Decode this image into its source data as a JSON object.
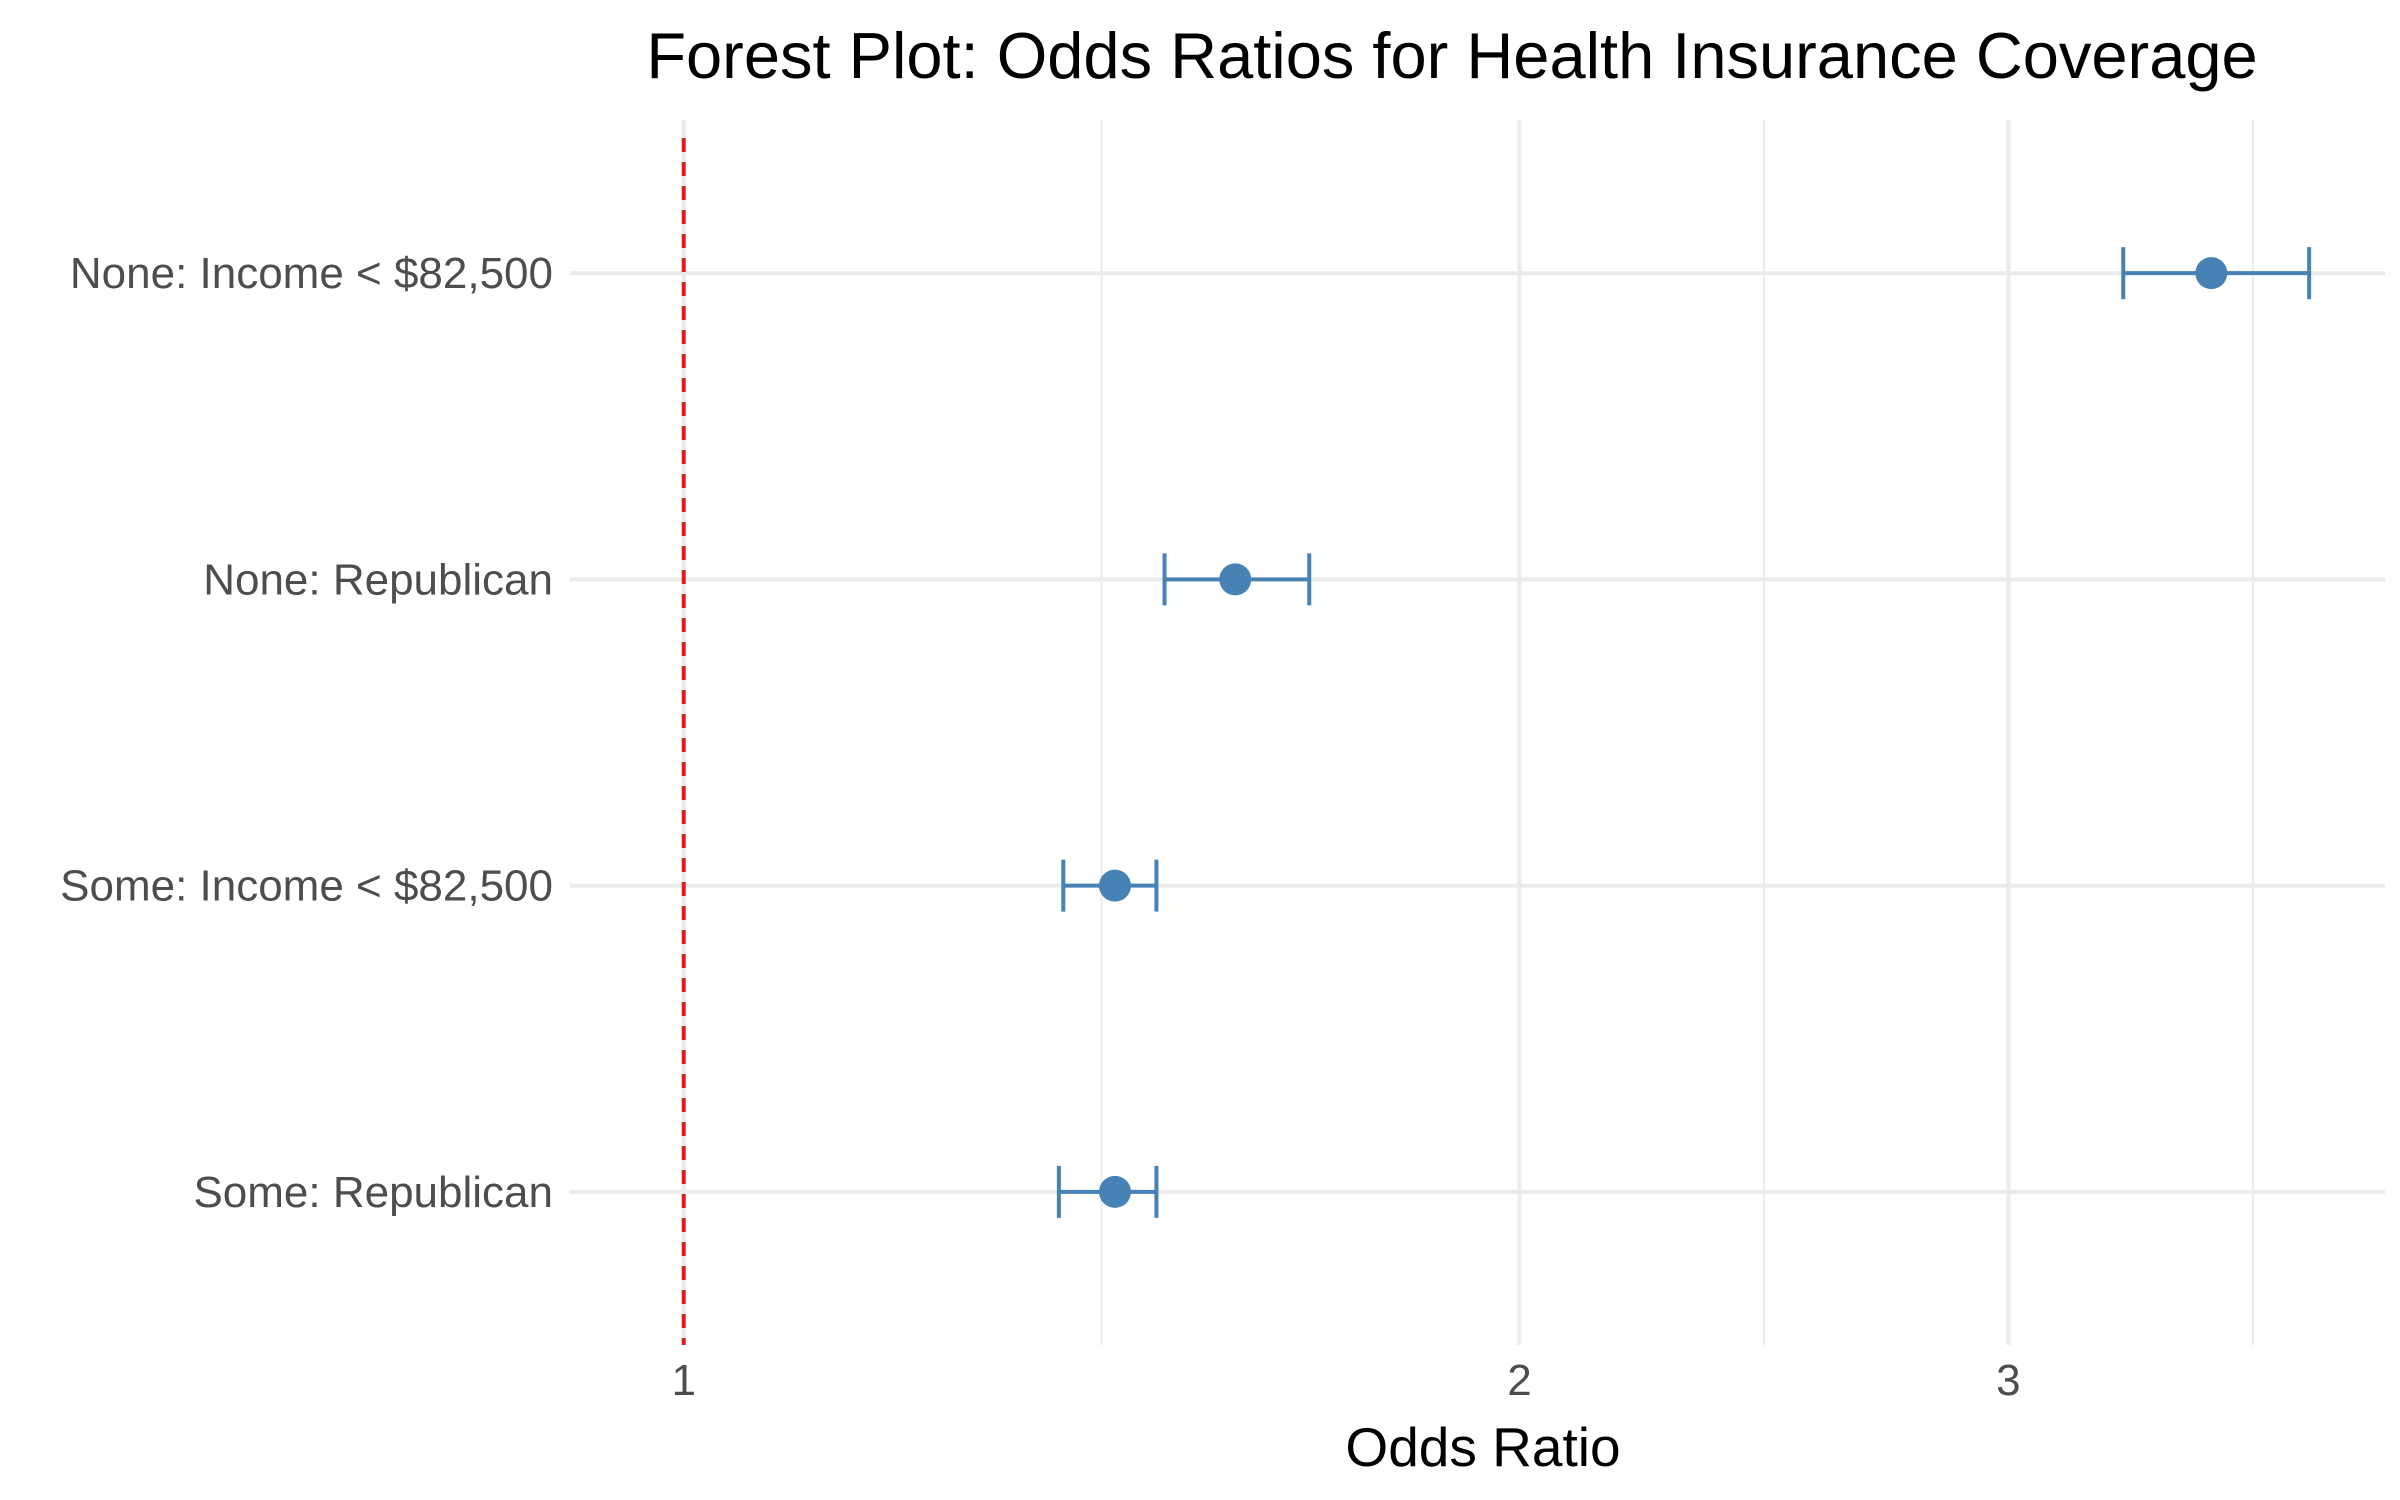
{
  "chart_data": {
    "type": "scatter",
    "subtype": "forest-plot",
    "title": "Forest Plot: Odds Ratios for Health Insurance Coverage",
    "xlabel": "Odds Ratio",
    "ylabel": "",
    "x_scale": "log",
    "xlim": [
      0.91,
      4.1
    ],
    "x_ticks": [
      1,
      2,
      3
    ],
    "x_tick_labels": [
      "1",
      "2",
      "3"
    ],
    "categories": [
      "None: Income < $82,500",
      "None: Republican",
      "Some: Income < $82,500",
      "Some: Republican"
    ],
    "points": [
      {
        "label": "None: Income < $82,500",
        "estimate": 3.55,
        "lower": 3.3,
        "upper": 3.85
      },
      {
        "label": "None: Republican",
        "estimate": 1.58,
        "lower": 1.49,
        "upper": 1.68
      },
      {
        "label": "Some: Income < $82,500",
        "estimate": 1.43,
        "lower": 1.37,
        "upper": 1.48
      },
      {
        "label": "Some: Republican",
        "estimate": 1.43,
        "lower": 1.365,
        "upper": 1.48
      }
    ],
    "reference_line": {
      "x": 1,
      "style": "dashed",
      "color": "#e41a1c"
    },
    "point_color": "#4682b4",
    "grid": true,
    "legend": "none"
  }
}
